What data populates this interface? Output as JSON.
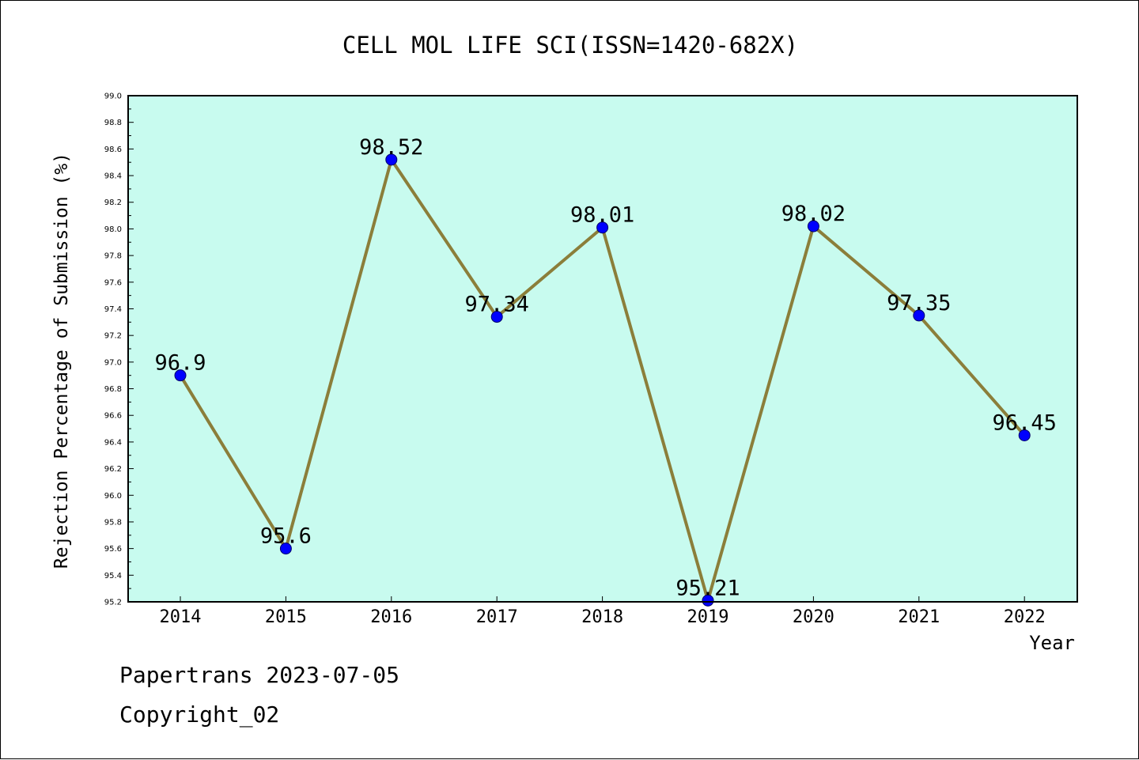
{
  "chart_data": {
    "type": "line",
    "title": "CELL MOL LIFE SCI(ISSN=1420-682X)",
    "xlabel": "Year",
    "ylabel": "Rejection Percentage of Submission (%)",
    "categories": [
      "2014",
      "2015",
      "2016",
      "2017",
      "2018",
      "2019",
      "2020",
      "2021",
      "2022"
    ],
    "values": [
      96.9,
      95.6,
      98.52,
      97.34,
      98.01,
      95.21,
      98.02,
      97.35,
      96.45
    ],
    "data_labels": [
      "96.9",
      "95.6",
      "98.52",
      "97.34",
      "98.01",
      "95.21",
      "98.02",
      "97.35",
      "96.45"
    ],
    "ylim": [
      95.2,
      99.0
    ],
    "yticks": [
      "95.2",
      "95.4",
      "95.6",
      "95.8",
      "96.0",
      "96.2",
      "96.4",
      "96.6",
      "96.8",
      "97.0",
      "97.2",
      "97.4",
      "97.6",
      "97.8",
      "98.0",
      "98.2",
      "98.4",
      "98.6",
      "98.8",
      "99.0"
    ],
    "grid": false,
    "colors": {
      "plot_background": "#c8fbef",
      "line": "#8b7e3a",
      "marker": "#0000ff"
    }
  },
  "footer": {
    "line1": "Papertrans 2023-07-05",
    "line2": "Copyright_02"
  }
}
